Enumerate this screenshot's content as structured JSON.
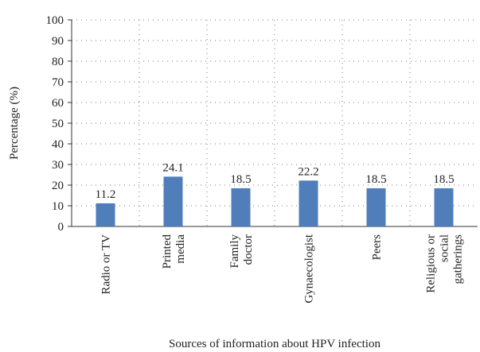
{
  "chart_data": {
    "type": "bar",
    "categories": [
      "Radio or TV",
      "Printed media",
      "Family doctor",
      "Gynaecologist",
      "Peers",
      "Religious or social gatherings"
    ],
    "values": [
      11.2,
      24.1,
      18.5,
      22.2,
      18.5,
      18.5
    ],
    "color": "#4f7ebb",
    "x_label": "Sources of information about HPV infection",
    "y_label": "Percentage (%)",
    "ylim": [
      0,
      100
    ],
    "yticks": [
      0,
      10,
      20,
      30,
      40,
      50,
      60,
      70,
      80,
      90,
      100
    ],
    "grid": true
  }
}
